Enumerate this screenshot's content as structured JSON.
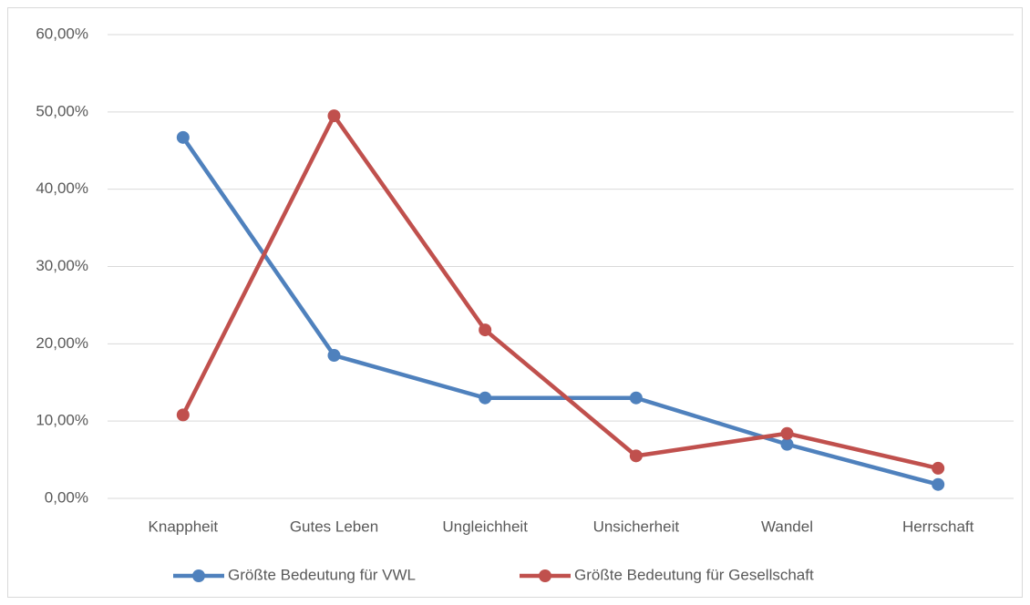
{
  "chart_data": {
    "type": "line",
    "categories": [
      "Knappheit",
      "Gutes Leben",
      "Ungleichheit",
      "Unsicherheit",
      "Wandel",
      "Herrschaft"
    ],
    "series": [
      {
        "name": "Größte Bedeutung für VWL",
        "color": "#4f81bd",
        "values": [
          46.7,
          18.5,
          13.0,
          13.0,
          7.0,
          1.8
        ]
      },
      {
        "name": "Größte Bedeutung für Gesellschaft",
        "color": "#c0504d",
        "values": [
          10.8,
          49.5,
          21.8,
          5.5,
          8.4,
          3.9
        ]
      }
    ],
    "ylim": [
      0,
      60
    ],
    "yticks": [
      {
        "value": 0,
        "label": "0,00%"
      },
      {
        "value": 10,
        "label": "10,00%"
      },
      {
        "value": 20,
        "label": "20,00%"
      },
      {
        "value": 30,
        "label": "30,00%"
      },
      {
        "value": 40,
        "label": "40,00%"
      },
      {
        "value": 50,
        "label": "50,00%"
      },
      {
        "value": 60,
        "label": "60,00%"
      }
    ],
    "grid": true,
    "legend": "bottom"
  }
}
